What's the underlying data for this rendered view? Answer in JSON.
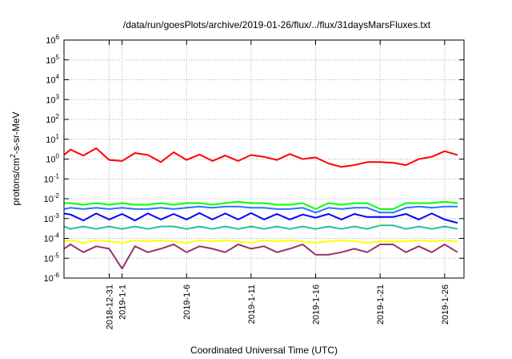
{
  "chart_data": {
    "type": "line",
    "title": "/data/run/goesPlots/archive/2019-01-26/flux/../flux/31daysMarsFluxes.txt",
    "xlabel": "Coordinated Universal Time (UTC)",
    "ylabel": "protons/cm2-s-sr-MeV",
    "ylabel_parts": {
      "pre": "protons/cm",
      "sup": "2",
      "post": "-s-sr-MeV"
    },
    "y_scale": "log",
    "ylim": [
      1e-06,
      1000000.0
    ],
    "xlim": [
      "2018-12-27T12:00",
      "2019-01-27T12:00"
    ],
    "grid": true,
    "legend": "none",
    "y_ticks": [
      {
        "value": 1e-06,
        "base": "10",
        "exp": "-6"
      },
      {
        "value": 1e-05,
        "base": "10",
        "exp": "-5"
      },
      {
        "value": 0.0001,
        "base": "10",
        "exp": "-4"
      },
      {
        "value": 0.001,
        "base": "10",
        "exp": "-3"
      },
      {
        "value": 0.01,
        "base": "10",
        "exp": "-2"
      },
      {
        "value": 0.1,
        "base": "10",
        "exp": "-1"
      },
      {
        "value": 1.0,
        "base": "10",
        "exp": "0"
      },
      {
        "value": 10.0,
        "base": "10",
        "exp": "1"
      },
      {
        "value": 100.0,
        "base": "10",
        "exp": "2"
      },
      {
        "value": 1000.0,
        "base": "10",
        "exp": "3"
      },
      {
        "value": 10000.0,
        "base": "10",
        "exp": "4"
      },
      {
        "value": 100000.0,
        "base": "10",
        "exp": "5"
      },
      {
        "value": 1000000.0,
        "base": "10",
        "exp": "6"
      }
    ],
    "x_ticks": [
      {
        "date": "2018-12-31",
        "label": "2018-12-31"
      },
      {
        "date": "2019-01-01",
        "label": "2019-1-1"
      },
      {
        "date": "2019-01-06",
        "label": "2019-1-6"
      },
      {
        "date": "2019-01-11",
        "label": "2019-1-11"
      },
      {
        "date": "2019-01-16",
        "label": "2019-1-16"
      },
      {
        "date": "2019-01-21",
        "label": "2019-1-21"
      },
      {
        "date": "2019-01-26",
        "label": "2019-1-26"
      }
    ],
    "x": [
      "2018-12-27",
      "2018-12-28",
      "2018-12-29",
      "2018-12-30",
      "2018-12-31",
      "2019-01-01",
      "2019-01-02",
      "2019-01-03",
      "2019-01-04",
      "2019-01-05",
      "2019-01-06",
      "2019-01-07",
      "2019-01-08",
      "2019-01-09",
      "2019-01-10",
      "2019-01-11",
      "2019-01-12",
      "2019-01-13",
      "2019-01-14",
      "2019-01-15",
      "2019-01-16",
      "2019-01-17",
      "2019-01-18",
      "2019-01-19",
      "2019-01-20",
      "2019-01-21",
      "2019-01-22",
      "2019-01-23",
      "2019-01-24",
      "2019-01-25",
      "2019-01-26",
      "2019-01-27"
    ],
    "series": [
      {
        "color": "#ff0000",
        "values": [
          1.6,
          3.0,
          1.5,
          3.5,
          0.9,
          0.8,
          2.0,
          1.6,
          0.7,
          2.2,
          0.9,
          1.7,
          0.8,
          1.5,
          0.8,
          1.6,
          1.3,
          0.9,
          1.8,
          1.0,
          1.2,
          0.6,
          0.4,
          0.5,
          0.7,
          0.7,
          0.65,
          0.5,
          1.0,
          1.3,
          2.5,
          1.6
        ]
      },
      {
        "color": "#00ff00",
        "values": [
          0.006,
          0.006,
          0.005,
          0.006,
          0.005,
          0.006,
          0.005,
          0.005,
          0.006,
          0.005,
          0.006,
          0.006,
          0.005,
          0.006,
          0.007,
          0.006,
          0.006,
          0.005,
          0.005,
          0.006,
          0.003,
          0.006,
          0.005,
          0.006,
          0.006,
          0.003,
          0.003,
          0.006,
          0.006,
          0.006,
          0.007,
          0.006
        ]
      },
      {
        "color": "#3070ff",
        "values": [
          0.003,
          0.0035,
          0.003,
          0.0035,
          0.003,
          0.0035,
          0.003,
          0.003,
          0.0035,
          0.003,
          0.0035,
          0.004,
          0.0035,
          0.004,
          0.004,
          0.0035,
          0.0035,
          0.003,
          0.003,
          0.0035,
          0.002,
          0.0035,
          0.003,
          0.0035,
          0.0035,
          0.002,
          0.002,
          0.0035,
          0.004,
          0.0035,
          0.004,
          0.004
        ]
      },
      {
        "color": "#0000ff",
        "values": [
          0.0018,
          0.0016,
          0.0008,
          0.0018,
          0.0009,
          0.0017,
          0.0008,
          0.0018,
          0.0009,
          0.0017,
          0.0009,
          0.0019,
          0.0009,
          0.0018,
          0.0009,
          0.0019,
          0.0009,
          0.0017,
          0.0009,
          0.0016,
          0.0011,
          0.0017,
          0.0009,
          0.0017,
          0.0012,
          0.0012,
          0.0012,
          0.0017,
          0.0009,
          0.0018,
          0.0009,
          0.0006
        ]
      },
      {
        "color": "#20c0a0",
        "values": [
          0.0004,
          0.0003,
          0.0004,
          0.0003,
          0.0004,
          0.0003,
          0.0004,
          0.0003,
          0.0004,
          0.0004,
          0.0003,
          0.0004,
          0.0003,
          0.0004,
          0.0003,
          0.0004,
          0.0003,
          0.0004,
          0.0003,
          0.0004,
          0.0003,
          0.0004,
          0.0003,
          0.0004,
          0.0003,
          0.00045,
          0.00045,
          0.0003,
          0.0004,
          0.0003,
          0.0004,
          0.0003
        ]
      },
      {
        "color": "#ffff00",
        "values": [
          7e-05,
          8e-05,
          6e-05,
          8e-05,
          7e-05,
          6e-05,
          8e-05,
          7e-05,
          8e-05,
          7e-05,
          6e-05,
          8e-05,
          7e-05,
          8e-05,
          7e-05,
          6e-05,
          8e-05,
          7e-05,
          8e-05,
          7e-05,
          6e-05,
          7e-05,
          8e-05,
          7e-05,
          6e-05,
          7e-05,
          7e-05,
          7e-05,
          8e-05,
          7e-05,
          8e-05,
          7e-05
        ]
      },
      {
        "color": "#993366",
        "values": [
          3e-05,
          5e-05,
          2e-05,
          4e-05,
          3e-05,
          3e-06,
          4e-05,
          2e-05,
          3e-05,
          5e-05,
          2e-05,
          4e-05,
          3e-05,
          2e-05,
          5e-05,
          3e-05,
          4e-05,
          2e-05,
          3e-05,
          5e-05,
          1.5e-05,
          1.5e-05,
          2e-05,
          3e-05,
          2e-05,
          5e-05,
          5e-05,
          2e-05,
          4e-05,
          2e-05,
          5e-05,
          2e-05
        ]
      }
    ]
  }
}
